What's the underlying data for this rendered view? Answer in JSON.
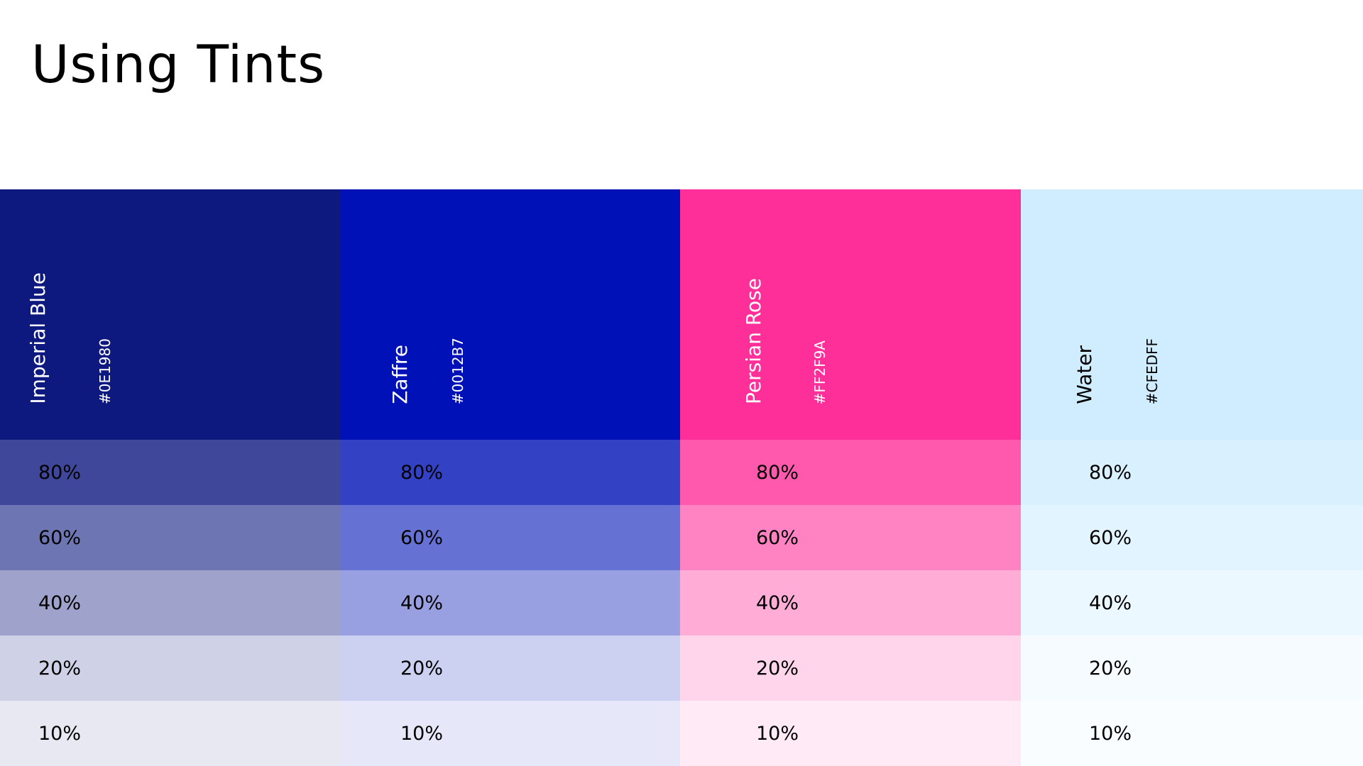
{
  "page_title": "Using Tints",
  "colors": [
    {
      "name": "Imperial Blue",
      "hex_label": "#0E1980",
      "base_color": "#0E1980",
      "text_color": "#FFFFFF",
      "tints": [
        {
          "label": "80%",
          "color": "#3E4799"
        },
        {
          "label": "60%",
          "color": "#6E75B3"
        },
        {
          "label": "40%",
          "color": "#9FA3CC"
        },
        {
          "label": "20%",
          "color": "#CFD1E6"
        },
        {
          "label": "10%",
          "color": "#E7E8F2"
        }
      ]
    },
    {
      "name": "Zaffre",
      "hex_label": "#0012B7",
      "base_color": "#0012B7",
      "text_color": "#FFFFFF",
      "tints": [
        {
          "label": "80%",
          "color": "#3341C5"
        },
        {
          "label": "60%",
          "color": "#6671D4"
        },
        {
          "label": "40%",
          "color": "#99A0E2"
        },
        {
          "label": "20%",
          "color": "#CCD0F1"
        },
        {
          "label": "10%",
          "color": "#E6E7F8"
        }
      ]
    },
    {
      "name": "Persian Rose",
      "hex_label": "#FF2F9A",
      "base_color": "#FF2F9A",
      "text_color": "#FFFFFF",
      "tints": [
        {
          "label": "80%",
          "color": "#FF59AE"
        },
        {
          "label": "60%",
          "color": "#FF82C2"
        },
        {
          "label": "40%",
          "color": "#FFACD7"
        },
        {
          "label": "20%",
          "color": "#FFD5EB"
        },
        {
          "label": "10%",
          "color": "#FFEAF5"
        }
      ]
    },
    {
      "name": "Water",
      "hex_label": "#CFEDFF",
      "base_color": "#CFEDFF",
      "text_color": "#000000",
      "tints": [
        {
          "label": "80%",
          "color": "#D9F1FF"
        },
        {
          "label": "60%",
          "color": "#E2F4FF"
        },
        {
          "label": "40%",
          "color": "#ECF8FF"
        },
        {
          "label": "20%",
          "color": "#F5FBFF"
        },
        {
          "label": "10%",
          "color": "#FAFDFF"
        }
      ]
    }
  ]
}
